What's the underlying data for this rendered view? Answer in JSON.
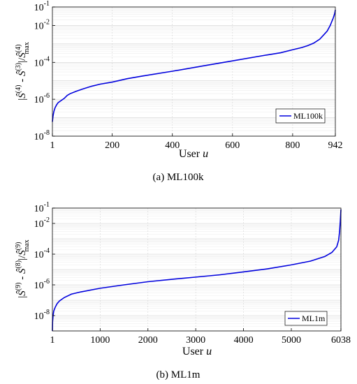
{
  "chart_data": [
    {
      "type": "line",
      "xlabel": "User u",
      "ylabel": "|Ŝ(4) - Ŝ(3)|/Ŝ(4)max",
      "caption": "(a) ML100k",
      "legend": "ML100k",
      "legend_position": "lower-right",
      "grid": true,
      "yscale": "log",
      "xlim": [
        1,
        942
      ],
      "ylim": [
        1e-08,
        0.1
      ],
      "xticks": [
        "1",
        "200",
        "400",
        "600",
        "800",
        "942"
      ],
      "xtick_values": [
        1,
        200,
        400,
        600,
        800,
        942
      ],
      "yticks": [
        "10-8",
        "10-6",
        "10-4",
        "10-2",
        "10-1"
      ],
      "ytick_values": [
        1e-08,
        1e-06,
        0.0001,
        0.01,
        0.1
      ],
      "color": "#0000dd",
      "series": [
        {
          "name": "ML100k",
          "x": [
            1,
            3,
            6,
            10,
            15,
            20,
            30,
            40,
            50,
            60,
            80,
            100,
            130,
            160,
            200,
            250,
            300,
            400,
            500,
            600,
            700,
            760,
            800,
            830,
            850,
            870,
            890,
            905,
            915,
            925,
            930,
            935,
            940,
            942
          ],
          "y": [
            6e-08,
            1.2e-07,
            2.2e-07,
            3.5e-07,
            5e-07,
            6.5e-07,
            8.5e-07,
            1.1e-06,
            1.6e-06,
            2e-06,
            2.7e-06,
            3.5e-06,
            5e-06,
            6.6e-06,
            8.5e-06,
            1.3e-05,
            1.8e-05,
            3.3e-05,
            6.3e-05,
            0.00012,
            0.00023,
            0.00033,
            0.00048,
            0.00063,
            0.0008,
            0.0011,
            0.0018,
            0.0033,
            0.005,
            0.01,
            0.016,
            0.025,
            0.045,
            0.07
          ]
        }
      ]
    },
    {
      "type": "line",
      "xlabel": "User u",
      "ylabel": "|Ŝ(9) - Ŝ(8)|/Ŝ(9)max",
      "caption": "(b) ML1m",
      "legend": "ML1m",
      "legend_position": "lower-right",
      "grid": true,
      "yscale": "log",
      "xlim": [
        1,
        6038
      ],
      "ylim": [
        1e-09,
        0.1
      ],
      "xticks": [
        "1",
        "1000",
        "2000",
        "3000",
        "4000",
        "5000",
        "6038"
      ],
      "xtick_values": [
        1,
        1000,
        2000,
        3000,
        4000,
        5000,
        6038
      ],
      "yticks": [
        "10-8",
        "10-6",
        "10-4",
        "10-2",
        "10-1"
      ],
      "ytick_values": [
        1e-08,
        1e-06,
        0.0001,
        0.01,
        0.1
      ],
      "color": "#0000dd",
      "series": [
        {
          "name": "ML1m",
          "x": [
            1,
            5,
            15,
            30,
            60,
            100,
            150,
            250,
            400,
            600,
            1000,
            1500,
            2000,
            2500,
            3000,
            3500,
            4000,
            4500,
            5000,
            5400,
            5700,
            5850,
            5950,
            5990,
            6010,
            6025,
            6038
          ],
          "y": [
            1e-09,
            4e-09,
            1e-08,
            2e-08,
            3.5e-08,
            6e-08,
            9e-08,
            1.5e-07,
            2.5e-07,
            3.5e-07,
            6e-07,
            1e-06,
            1.6e-06,
            2.3e-06,
            3.2e-06,
            4.5e-06,
            7e-06,
            1.1e-05,
            2e-05,
            3.5e-05,
            7e-05,
            0.00013,
            0.0003,
            0.0008,
            0.003,
            0.015,
            0.08
          ]
        }
      ]
    }
  ]
}
